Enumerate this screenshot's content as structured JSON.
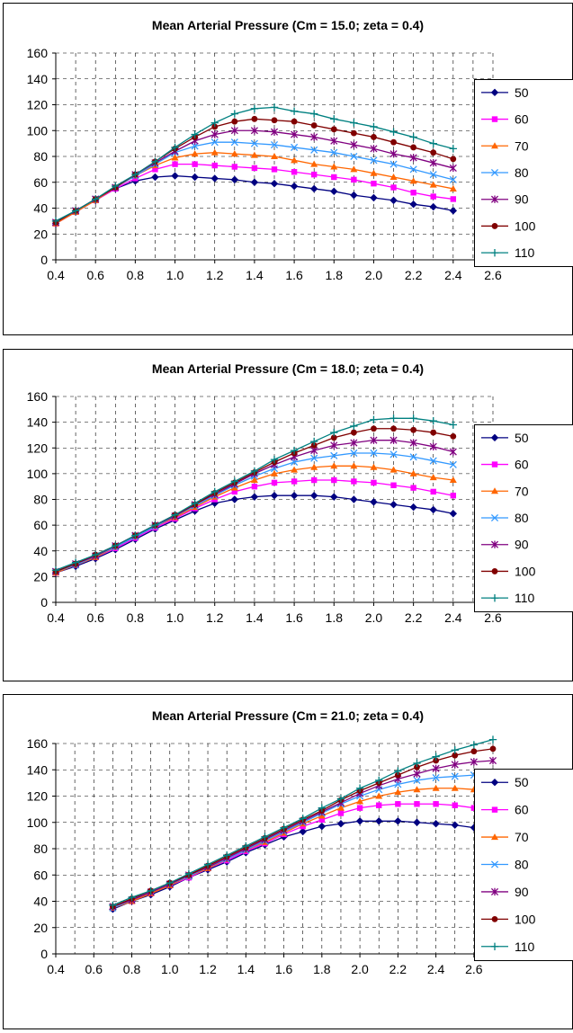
{
  "chart_data": [
    {
      "type": "line",
      "title": "Mean Arterial Pressure (Cm = 15.0; zeta = 0.4)",
      "xlabel": "",
      "ylabel": "",
      "xlim": [
        0.4,
        2.6
      ],
      "ylim": [
        0,
        160
      ],
      "xticks": [
        "0.4",
        "0.6",
        "0.8",
        "1.0",
        "1.2",
        "1.4",
        "1.6",
        "1.8",
        "2.0",
        "2.2",
        "2.4",
        "2.6"
      ],
      "yticks": [
        "0",
        "20",
        "40",
        "60",
        "80",
        "100",
        "120",
        "140",
        "160"
      ],
      "grid": true,
      "legend": "right",
      "x": [
        0.4,
        0.5,
        0.6,
        0.7,
        0.8,
        0.9,
        1.0,
        1.1,
        1.2,
        1.3,
        1.4,
        1.5,
        1.6,
        1.7,
        1.8,
        1.9,
        2.0,
        2.1,
        2.2,
        2.3,
        2.4
      ],
      "series": [
        {
          "name": "50",
          "color": "#000080",
          "marker": "diamond",
          "values": [
            28,
            37,
            46,
            55,
            61,
            64,
            65,
            64,
            63,
            62,
            60,
            59,
            57,
            55,
            53,
            50,
            48,
            46,
            43,
            41,
            38
          ]
        },
        {
          "name": "60",
          "color": "#FF00FF",
          "marker": "square",
          "values": [
            28,
            37,
            46,
            55,
            63,
            70,
            74,
            74,
            73,
            72,
            71,
            70,
            68,
            66,
            64,
            62,
            59,
            56,
            52,
            49,
            47
          ]
        },
        {
          "name": "70",
          "color": "#FF6600",
          "marker": "triangle",
          "values": [
            28,
            37,
            46,
            56,
            65,
            73,
            79,
            82,
            83,
            82,
            81,
            80,
            77,
            74,
            72,
            70,
            67,
            64,
            61,
            58,
            55
          ]
        },
        {
          "name": "80",
          "color": "#3399FF",
          "marker": "x",
          "values": [
            29,
            38,
            47,
            56,
            65,
            74,
            83,
            88,
            91,
            91,
            90,
            89,
            87,
            85,
            83,
            80,
            77,
            74,
            70,
            66,
            62
          ]
        },
        {
          "name": "90",
          "color": "#800080",
          "marker": "star",
          "values": [
            29,
            38,
            47,
            56,
            66,
            75,
            84,
            92,
            97,
            100,
            100,
            99,
            97,
            95,
            92,
            89,
            86,
            82,
            79,
            75,
            71
          ]
        },
        {
          "name": "100",
          "color": "#800000",
          "marker": "circle",
          "values": [
            29,
            38,
            47,
            56,
            66,
            76,
            86,
            95,
            103,
            107,
            109,
            108,
            107,
            104,
            101,
            98,
            95,
            91,
            87,
            83,
            78
          ]
        },
        {
          "name": "110",
          "color": "#008080",
          "marker": "plus",
          "values": [
            30,
            38,
            47,
            57,
            66,
            76,
            87,
            97,
            106,
            113,
            117,
            118,
            115,
            113,
            109,
            106,
            103,
            99,
            95,
            90,
            86
          ]
        }
      ]
    },
    {
      "type": "line",
      "title": "Mean Arterial Pressure (Cm = 18.0; zeta = 0.4)",
      "xlabel": "",
      "ylabel": "",
      "xlim": [
        0.4,
        2.6
      ],
      "ylim": [
        0,
        160
      ],
      "xticks": [
        "0.4",
        "0.6",
        "0.8",
        "1.0",
        "1.2",
        "1.4",
        "1.6",
        "1.8",
        "2.0",
        "2.2",
        "2.4",
        "2.6"
      ],
      "yticks": [
        "0",
        "20",
        "40",
        "60",
        "80",
        "100",
        "120",
        "140",
        "160"
      ],
      "grid": true,
      "legend": "right",
      "x": [
        0.4,
        0.5,
        0.6,
        0.7,
        0.8,
        0.9,
        1.0,
        1.1,
        1.2,
        1.3,
        1.4,
        1.5,
        1.6,
        1.7,
        1.8,
        1.9,
        2.0,
        2.1,
        2.2,
        2.3,
        2.4
      ],
      "series": [
        {
          "name": "50",
          "color": "#000080",
          "marker": "diamond",
          "values": [
            23,
            28,
            34,
            41,
            49,
            57,
            64,
            71,
            77,
            80,
            82,
            83,
            83,
            83,
            82,
            80,
            78,
            76,
            74,
            72,
            69
          ]
        },
        {
          "name": "60",
          "color": "#FF00FF",
          "marker": "square",
          "values": [
            23,
            29,
            35,
            42,
            50,
            58,
            65,
            73,
            80,
            86,
            90,
            93,
            94,
            95,
            95,
            94,
            93,
            91,
            89,
            86,
            83
          ]
        },
        {
          "name": "70",
          "color": "#FF6600",
          "marker": "triangle",
          "values": [
            23,
            29,
            35,
            43,
            51,
            59,
            66,
            74,
            82,
            89,
            95,
            100,
            103,
            105,
            106,
            106,
            105,
            103,
            100,
            97,
            95
          ]
        },
        {
          "name": "80",
          "color": "#3399FF",
          "marker": "x",
          "values": [
            24,
            29,
            36,
            43,
            51,
            59,
            67,
            75,
            83,
            91,
            98,
            104,
            109,
            112,
            114,
            116,
            116,
            115,
            113,
            110,
            107
          ]
        },
        {
          "name": "90",
          "color": "#800080",
          "marker": "star",
          "values": [
            24,
            30,
            36,
            44,
            52,
            60,
            67,
            76,
            84,
            92,
            100,
            107,
            113,
            118,
            122,
            124,
            126,
            126,
            124,
            121,
            117
          ]
        },
        {
          "name": "100",
          "color": "#800000",
          "marker": "circle",
          "values": [
            24,
            30,
            37,
            44,
            52,
            60,
            68,
            76,
            85,
            93,
            101,
            109,
            116,
            122,
            128,
            132,
            135,
            135,
            134,
            132,
            129
          ]
        },
        {
          "name": "110",
          "color": "#008080",
          "marker": "plus",
          "values": [
            25,
            31,
            37,
            44,
            52,
            60,
            68,
            77,
            86,
            94,
            102,
            111,
            118,
            125,
            132,
            137,
            142,
            143,
            143,
            141,
            138
          ]
        }
      ]
    },
    {
      "type": "line",
      "title": "Mean Arterial Pressure (Cm = 21.0; zeta = 0.4)",
      "xlabel": "",
      "ylabel": "",
      "xlim": [
        0.4,
        2.7
      ],
      "ylim": [
        0,
        160
      ],
      "xticks": [
        "0.4",
        "0.6",
        "0.8",
        "1.0",
        "1.2",
        "1.4",
        "1.6",
        "1.8",
        "2.0",
        "2.2",
        "2.4",
        "2.6"
      ],
      "yticks": [
        "0",
        "20",
        "40",
        "60",
        "80",
        "100",
        "120",
        "140",
        "160"
      ],
      "grid": true,
      "legend": "right",
      "x": [
        0.7,
        0.8,
        0.9,
        1.0,
        1.1,
        1.2,
        1.3,
        1.4,
        1.5,
        1.6,
        1.7,
        1.8,
        1.9,
        2.0,
        2.1,
        2.2,
        2.3,
        2.4,
        2.5,
        2.6,
        2.7
      ],
      "series": [
        {
          "name": "50",
          "color": "#000080",
          "marker": "diamond",
          "values": [
            34,
            40,
            45,
            51,
            58,
            64,
            70,
            77,
            83,
            89,
            93,
            97,
            99,
            101,
            101,
            101,
            100,
            99,
            98,
            96,
            94
          ]
        },
        {
          "name": "60",
          "color": "#FF00FF",
          "marker": "square",
          "values": [
            35,
            40,
            46,
            52,
            58,
            65,
            71,
            78,
            84,
            91,
            97,
            102,
            107,
            111,
            113,
            114,
            114,
            114,
            113,
            111,
            110
          ]
        },
        {
          "name": "70",
          "color": "#FF6600",
          "marker": "triangle",
          "values": [
            35,
            40,
            46,
            52,
            59,
            65,
            72,
            79,
            85,
            92,
            99,
            105,
            111,
            116,
            120,
            123,
            125,
            126,
            126,
            125,
            123
          ]
        },
        {
          "name": "80",
          "color": "#3399FF",
          "marker": "x",
          "values": [
            35,
            41,
            47,
            53,
            59,
            66,
            72,
            79,
            86,
            93,
            100,
            107,
            114,
            120,
            125,
            129,
            132,
            134,
            135,
            136,
            136
          ]
        },
        {
          "name": "90",
          "color": "#800080",
          "marker": "star",
          "values": [
            36,
            41,
            47,
            53,
            60,
            66,
            73,
            80,
            87,
            94,
            101,
            108,
            115,
            122,
            128,
            133,
            137,
            141,
            144,
            146,
            147
          ]
        },
        {
          "name": "100",
          "color": "#800000",
          "marker": "circle",
          "values": [
            36,
            42,
            48,
            54,
            60,
            67,
            74,
            81,
            88,
            95,
            102,
            109,
            117,
            124,
            130,
            136,
            142,
            147,
            151,
            154,
            156
          ]
        },
        {
          "name": "110",
          "color": "#008080",
          "marker": "plus",
          "values": [
            37,
            43,
            48,
            54,
            61,
            68,
            75,
            82,
            89,
            96,
            103,
            111,
            118,
            126,
            132,
            139,
            145,
            150,
            155,
            159,
            163
          ]
        }
      ]
    }
  ]
}
